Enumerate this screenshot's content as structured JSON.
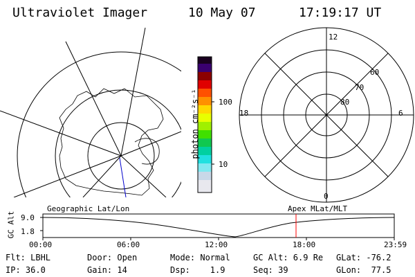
{
  "header": {
    "instrument": "Ultraviolet Imager",
    "date": "10 May 07",
    "time": "17:19:17 UT"
  },
  "colorbar": {
    "unit_label": "photon cm⁻²s⁻¹",
    "ticks": [
      "100",
      "10"
    ]
  },
  "polar_plot": {
    "mlt_labels": {
      "top": "12",
      "left": "18",
      "right": "6",
      "bottom": "0"
    },
    "lat_labels": [
      "60",
      "70",
      "80"
    ]
  },
  "timeline": {
    "left_title": "Geographic Lat/Lon",
    "right_title": "Apex MLat/MLT",
    "axis_label": "GC Alt",
    "y_ticks": [
      "9.0",
      "1.8"
    ],
    "x_ticks": [
      "00:00",
      "06:00",
      "12:00",
      "18:00",
      "23:59"
    ],
    "current_time_marker": "17:19:17",
    "marker_color": "#ff0000"
  },
  "info_rows": [
    [
      "Flt: LBHL",
      "Door: Open",
      "Mode: Normal",
      "GC Alt: 6.9 Re",
      "GLat: -76.2"
    ],
    [
      "IP: 36.0",
      "Gain: 14",
      "Dsp:    1.9",
      "Seq: 39",
      "GLon:  77.5"
    ]
  ]
}
